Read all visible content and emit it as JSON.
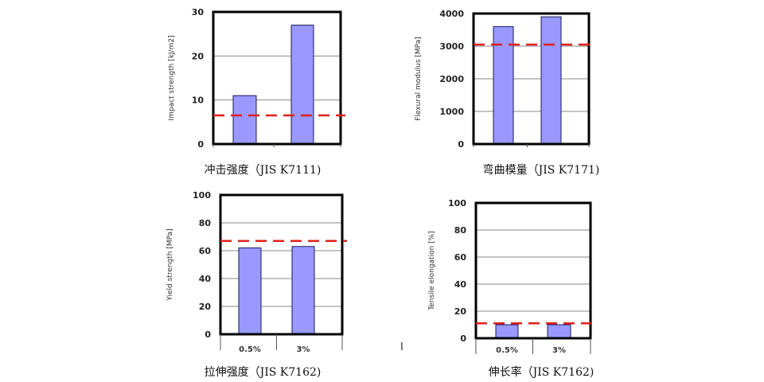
{
  "colors": {
    "bar": "#9999ff",
    "bar_edge": "#1a1a5a",
    "reference_line": "#e0201a",
    "grid": "#888888",
    "frame": "#000000"
  },
  "chart_data": [
    {
      "type": "bar",
      "title": "冲击强度（JIS K7111)",
      "ylabel": "Impact strength [kJ/m2]",
      "categories": [
        "",
        ""
      ],
      "values": [
        11,
        27
      ],
      "reference_line": 6.5,
      "ylim": [
        0,
        30
      ],
      "yticks": [
        "0",
        "10",
        "20",
        "30"
      ],
      "grid": true
    },
    {
      "type": "bar",
      "title": "弯曲模量（JIS K7171)",
      "ylabel": "Flexural modulus [MPa]",
      "categories": [
        "",
        ""
      ],
      "values": [
        3600,
        3900
      ],
      "reference_line": 3050,
      "ylim": [
        0,
        4000
      ],
      "yticks": [
        "0",
        "1000",
        "2000",
        "3000",
        "4000"
      ],
      "grid": true
    },
    {
      "type": "bar",
      "title": "拉伸强度（JIS K7162)",
      "ylabel": "Yield strength [MPa]",
      "categories": [
        "0.5%",
        "3%"
      ],
      "values": [
        62,
        63
      ],
      "reference_line": 67,
      "ylim": [
        0,
        100
      ],
      "yticks": [
        "0",
        "20",
        "40",
        "60",
        "80",
        "100"
      ],
      "grid": true
    },
    {
      "type": "bar",
      "title": "伸长率（JIS K7162)",
      "ylabel": "Tensile elongation [%]",
      "categories": [
        "0.5%",
        "3%"
      ],
      "values": [
        10,
        10
      ],
      "reference_line": 11,
      "ylim": [
        0,
        100
      ],
      "yticks": [
        "0",
        "20",
        "40",
        "60",
        "80",
        "100"
      ],
      "grid": true
    }
  ],
  "stray_mark": "I"
}
